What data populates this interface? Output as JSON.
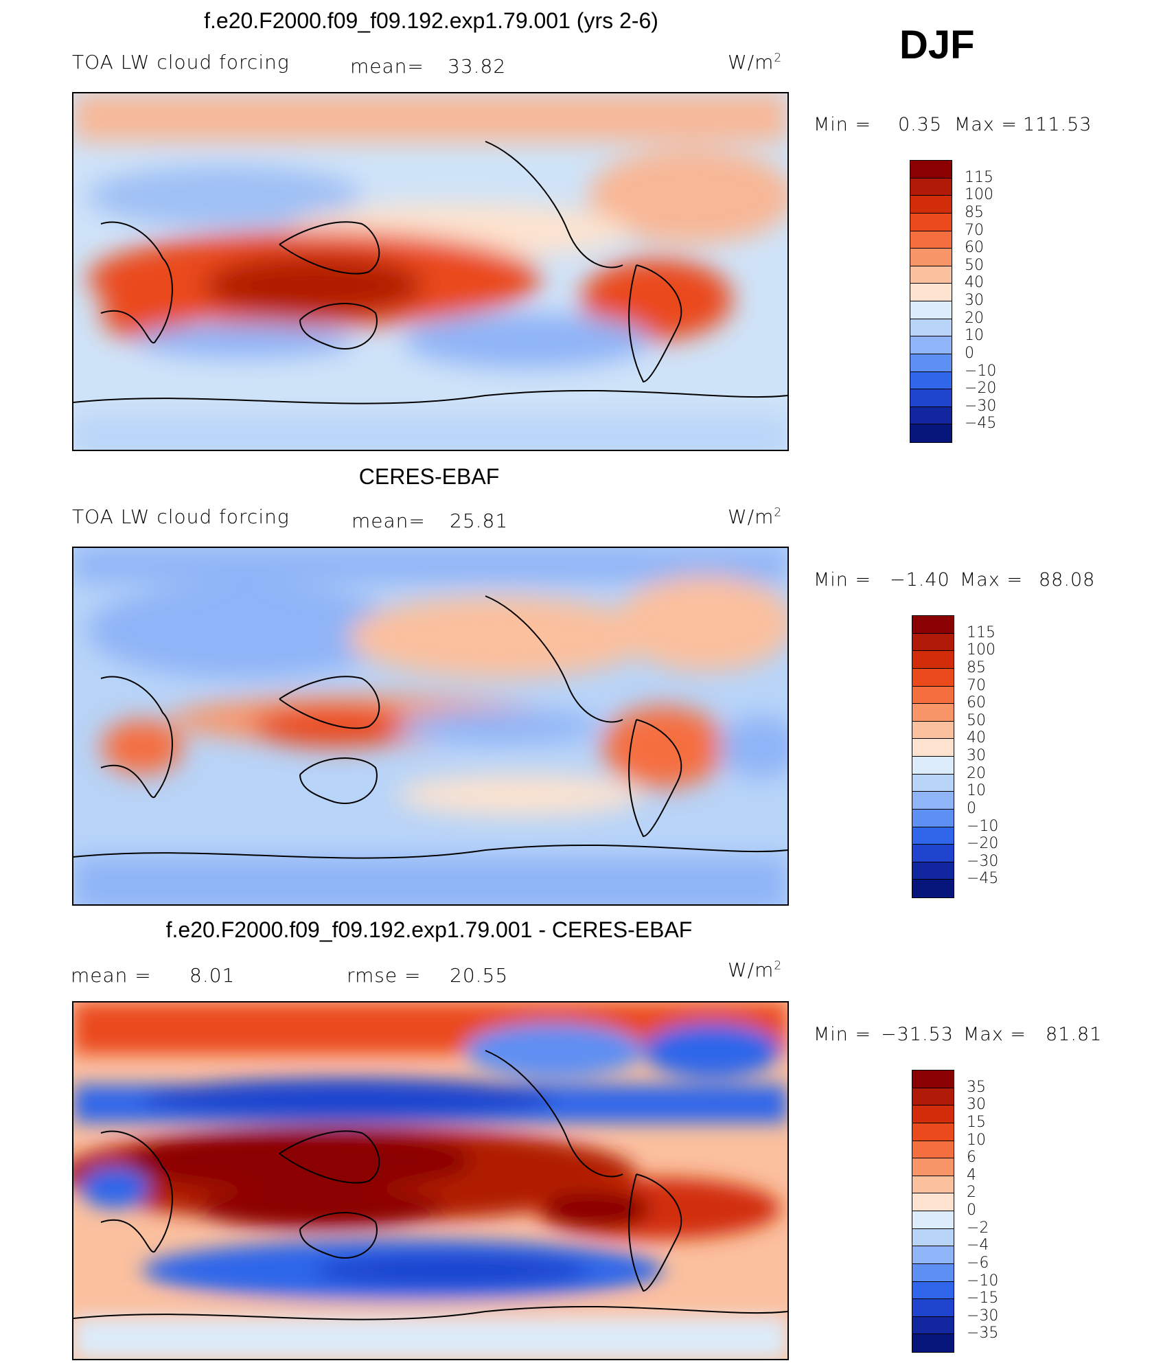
{
  "season": "DJF",
  "panels": [
    {
      "title": "f.e20.F2000.f09_f09.192.exp1.79.001 (yrs 2-6)",
      "variable": "TOA LW cloud forcing",
      "stat1_label": "mean=",
      "stat1_value": "33.82",
      "stat2_label": "",
      "stat2_value": "",
      "units_base": "W/m",
      "units_exp": "2",
      "min_label": "Min =",
      "min_value": "0.35",
      "max_label": "Max =",
      "max_value": "111.53",
      "colorbar_labels": [
        "115",
        "100",
        "85",
        "70",
        "60",
        "50",
        "40",
        "30",
        "20",
        "10",
        "0",
        "−10",
        "−20",
        "−30",
        "−45"
      ]
    },
    {
      "title": "CERES-EBAF",
      "variable": "TOA LW cloud forcing",
      "stat1_label": "mean=",
      "stat1_value": "25.81",
      "stat2_label": "",
      "stat2_value": "",
      "units_base": "W/m",
      "units_exp": "2",
      "min_label": "Min =",
      "min_value": "−1.40",
      "max_label": "Max =",
      "max_value": "88.08",
      "colorbar_labels": [
        "115",
        "100",
        "85",
        "70",
        "60",
        "50",
        "40",
        "30",
        "20",
        "10",
        "0",
        "−10",
        "−20",
        "−30",
        "−45"
      ]
    },
    {
      "title": "f.e20.F2000.f09_f09.192.exp1.79.001 - CERES-EBAF",
      "variable": "",
      "stat1_label": "mean =",
      "stat1_value": "8.01",
      "stat2_label": "rmse =",
      "stat2_value": "20.55",
      "units_base": "W/m",
      "units_exp": "2",
      "min_label": "Min =",
      "min_value": "−31.53",
      "max_label": "Max =",
      "max_value": "81.81",
      "colorbar_labels": [
        "35",
        "30",
        "15",
        "10",
        "6",
        "4",
        "2",
        "0",
        "−2",
        "−4",
        "−6",
        "−10",
        "−15",
        "−30",
        "−35"
      ]
    }
  ],
  "colors": {
    "scale": [
      "#8b0000",
      "#b01a06",
      "#d12d0b",
      "#ea4a1c",
      "#f56e3f",
      "#f8966a",
      "#fbc09e",
      "#fde3cf",
      "#dcecfa",
      "#b8d4f8",
      "#8fb4f7",
      "#5e8ff3",
      "#2f66ea",
      "#1f45cf",
      "#12279f",
      "#07167a"
    ]
  }
}
